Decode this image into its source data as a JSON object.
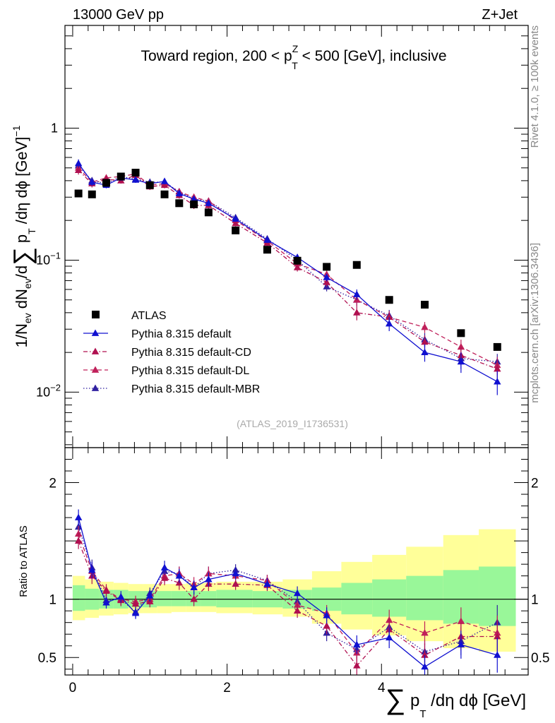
{
  "header": {
    "left_label": "13000 GeV pp",
    "right_label": "Z+Jet",
    "side_label_top": "Rivet 4.1.0, ≥ 100k events",
    "side_label_bottom": "mcplots.cern.ch [arXiv:1306.3436]"
  },
  "chart_data": [
    {
      "type": "scatter",
      "title": "Toward region, 200 < p_T^Z < 500 [GeV], inclusive",
      "ylabel": "1/N_ev dN_ev/d Σ p_T /dη dφ [GeV]^-1",
      "yscale": "log",
      "xlim": [
        -0.1,
        5.9
      ],
      "ylim": [
        0.0038,
        6
      ],
      "ytick_labels": [
        "10^-2",
        "10^-1",
        "1"
      ],
      "ytick_values": [
        0.01,
        0.1,
        1
      ],
      "watermark": "(ATLAS_2019_I1736531)",
      "legend_position": "lower-left",
      "x": [
        0.075,
        0.25,
        0.435,
        0.625,
        0.815,
        1.0,
        1.19,
        1.38,
        1.57,
        1.76,
        2.11,
        2.52,
        2.91,
        3.29,
        3.68,
        4.1,
        4.56,
        5.03,
        5.5
      ],
      "series": [
        {
          "name": "ATLAS",
          "color": "#000000",
          "marker": "square",
          "line": "none",
          "values": [
            0.32,
            0.315,
            0.385,
            0.43,
            0.46,
            0.37,
            0.315,
            0.27,
            0.265,
            0.23,
            0.168,
            0.12,
            0.099,
            0.089,
            0.092,
            0.05,
            0.046,
            0.028,
            0.022
          ]
        },
        {
          "name": "Pythia 8.315 default",
          "color": "#1010d0",
          "marker": "triangle",
          "line": "solid",
          "values": [
            0.54,
            0.39,
            0.37,
            0.42,
            0.405,
            0.38,
            0.395,
            0.32,
            0.29,
            0.27,
            0.205,
            0.142,
            0.105,
            0.074,
            0.055,
            0.033,
            0.02,
            0.017,
            0.012
          ],
          "errors": [
            0.04,
            0.025,
            0.02,
            0.02,
            0.02,
            0.02,
            0.02,
            0.018,
            0.016,
            0.015,
            0.01,
            0.007,
            0.006,
            0.005,
            0.005,
            0.004,
            0.003,
            0.003,
            0.0025
          ]
        },
        {
          "name": "Pythia 8.315 default-CD",
          "color": "#b01050",
          "marker": "triangle",
          "line": "dashdot",
          "values": [
            0.48,
            0.38,
            0.41,
            0.4,
            0.44,
            0.36,
            0.37,
            0.31,
            0.26,
            0.26,
            0.19,
            0.135,
            0.088,
            0.068,
            0.04,
            0.037,
            0.024,
            0.019,
            0.015
          ],
          "errors": [
            0.035,
            0.025,
            0.02,
            0.02,
            0.02,
            0.02,
            0.02,
            0.018,
            0.016,
            0.015,
            0.01,
            0.007,
            0.006,
            0.005,
            0.005,
            0.004,
            0.003,
            0.003,
            0.0025
          ]
        },
        {
          "name": "Pythia 8.315 default-DL",
          "color": "#c0205a",
          "marker": "triangle",
          "line": "dashed",
          "values": [
            0.5,
            0.39,
            0.42,
            0.43,
            0.45,
            0.37,
            0.38,
            0.33,
            0.3,
            0.28,
            0.2,
            0.14,
            0.094,
            0.078,
            0.05,
            0.037,
            0.031,
            0.022,
            0.016
          ],
          "errors": [
            0.035,
            0.025,
            0.02,
            0.02,
            0.02,
            0.02,
            0.02,
            0.018,
            0.016,
            0.015,
            0.01,
            0.007,
            0.006,
            0.005,
            0.005,
            0.004,
            0.003,
            0.003,
            0.0025
          ]
        },
        {
          "name": "Pythia 8.315 default-MBR",
          "color": "#3020a0",
          "marker": "triangle",
          "line": "dotted",
          "values": [
            0.52,
            0.4,
            0.38,
            0.43,
            0.41,
            0.39,
            0.39,
            0.33,
            0.29,
            0.28,
            0.21,
            0.145,
            0.1,
            0.063,
            0.05,
            0.038,
            0.025,
            0.018,
            0.017
          ],
          "errors": [
            0.035,
            0.025,
            0.02,
            0.02,
            0.02,
            0.02,
            0.02,
            0.018,
            0.016,
            0.015,
            0.01,
            0.007,
            0.006,
            0.005,
            0.005,
            0.004,
            0.003,
            0.003,
            0.0025
          ]
        }
      ]
    },
    {
      "type": "scatter",
      "title": "",
      "xlabel": "Σ p_T /dη dφ [GeV]",
      "ylabel": "Ratio to ATLAS",
      "xlim": [
        -0.1,
        5.9
      ],
      "ylim": [
        0.35,
        2.3
      ],
      "xtick_labels": [
        "0",
        "2",
        "4"
      ],
      "xtick_values": [
        0,
        2,
        4
      ],
      "ytick_labels": [
        "0.5",
        "1",
        "2"
      ],
      "ytick_values": [
        0.5,
        1,
        2
      ],
      "bin_edges": [
        0,
        0.16,
        0.34,
        0.53,
        0.72,
        0.91,
        1.09,
        1.28,
        1.47,
        1.66,
        1.86,
        2.33,
        2.72,
        3.1,
        3.48,
        3.88,
        4.32,
        4.8,
        5.26,
        5.74
      ],
      "band_inner": [
        [
          0.9,
          1.12
        ],
        [
          0.91,
          1.09
        ],
        [
          0.92,
          1.08
        ],
        [
          0.92,
          1.08
        ],
        [
          0.93,
          1.07
        ],
        [
          0.93,
          1.07
        ],
        [
          0.94,
          1.07
        ],
        [
          0.94,
          1.07
        ],
        [
          0.94,
          1.07
        ],
        [
          0.94,
          1.07
        ],
        [
          0.93,
          1.08
        ],
        [
          0.93,
          1.07
        ],
        [
          0.92,
          1.08
        ],
        [
          0.9,
          1.1
        ],
        [
          0.87,
          1.14
        ],
        [
          0.85,
          1.17
        ],
        [
          0.82,
          1.2
        ],
        [
          0.79,
          1.25
        ],
        [
          0.77,
          1.28
        ]
      ],
      "band_outer": [
        [
          0.82,
          1.2
        ],
        [
          0.84,
          1.17
        ],
        [
          0.86,
          1.15
        ],
        [
          0.87,
          1.14
        ],
        [
          0.88,
          1.13
        ],
        [
          0.88,
          1.13
        ],
        [
          0.88,
          1.13
        ],
        [
          0.89,
          1.13
        ],
        [
          0.89,
          1.14
        ],
        [
          0.89,
          1.14
        ],
        [
          0.88,
          1.15
        ],
        [
          0.87,
          1.15
        ],
        [
          0.85,
          1.17
        ],
        [
          0.79,
          1.24
        ],
        [
          0.74,
          1.32
        ],
        [
          0.69,
          1.38
        ],
        [
          0.64,
          1.45
        ],
        [
          0.58,
          1.55
        ],
        [
          0.55,
          1.6
        ]
      ],
      "series": [
        {
          "name": "Pythia 8.315 default",
          "color": "#1010d0",
          "line": "solid",
          "values": [
            1.7,
            1.25,
            0.97,
            1.02,
            0.88,
            1.03,
            1.27,
            1.2,
            1.1,
            1.17,
            1.22,
            1.13,
            1.05,
            0.86,
            0.61,
            0.67,
            0.42,
            0.61,
            0.52
          ],
          "errors": [
            0.07,
            0.07,
            0.05,
            0.05,
            0.05,
            0.05,
            0.06,
            0.06,
            0.06,
            0.06,
            0.05,
            0.05,
            0.06,
            0.07,
            0.08,
            0.09,
            0.1,
            0.12,
            0.15
          ]
        },
        {
          "name": "Pythia 8.315 default-CD",
          "color": "#b01050",
          "line": "dashdot",
          "values": [
            1.5,
            1.2,
            1.07,
            0.99,
            0.96,
            0.98,
            1.18,
            1.14,
            1.0,
            1.13,
            1.13,
            1.12,
            0.9,
            0.77,
            0.43,
            0.74,
            0.52,
            0.68,
            0.68
          ],
          "errors": [
            0.07,
            0.07,
            0.05,
            0.05,
            0.05,
            0.05,
            0.06,
            0.06,
            0.06,
            0.06,
            0.05,
            0.05,
            0.06,
            0.07,
            0.08,
            0.09,
            0.1,
            0.12,
            0.15
          ]
        },
        {
          "name": "Pythia 8.315 default-DL",
          "color": "#c0205a",
          "line": "dashed",
          "values": [
            1.56,
            1.24,
            1.08,
            1.0,
            0.98,
            1.0,
            1.2,
            1.22,
            1.13,
            1.22,
            1.2,
            1.16,
            0.95,
            0.88,
            0.54,
            0.82,
            0.71,
            0.81,
            0.71
          ],
          "errors": [
            0.07,
            0.07,
            0.05,
            0.05,
            0.05,
            0.05,
            0.06,
            0.06,
            0.06,
            0.06,
            0.05,
            0.05,
            0.06,
            0.07,
            0.08,
            0.09,
            0.1,
            0.12,
            0.15
          ]
        },
        {
          "name": "Pythia 8.315 default-MBR",
          "color": "#3020a0",
          "line": "dotted",
          "values": [
            1.62,
            1.27,
            0.99,
            1.0,
            0.89,
            1.05,
            1.24,
            1.22,
            1.1,
            1.22,
            1.25,
            1.16,
            0.98,
            0.71,
            0.57,
            0.76,
            0.55,
            0.64,
            0.8
          ],
          "errors": [
            0.07,
            0.07,
            0.05,
            0.05,
            0.05,
            0.05,
            0.06,
            0.06,
            0.06,
            0.06,
            0.05,
            0.05,
            0.06,
            0.07,
            0.08,
            0.09,
            0.1,
            0.12,
            0.15
          ]
        }
      ]
    }
  ]
}
